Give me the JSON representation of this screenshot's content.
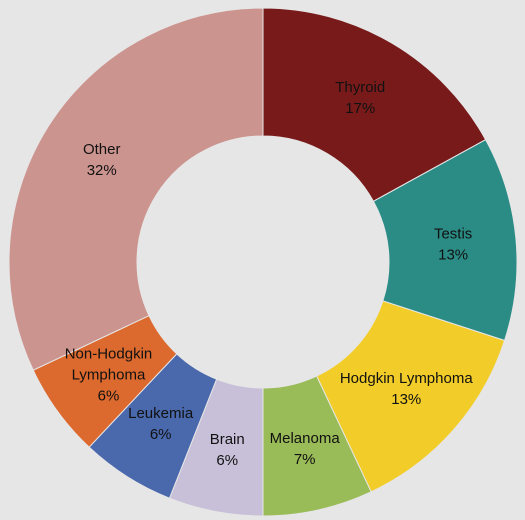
{
  "chart_data": {
    "type": "pie",
    "categories": [
      "Thyroid",
      "Testis",
      "Hodgkin Lymphoma",
      "Melanoma",
      "Brain",
      "Leukemia",
      "Non-Hodgkin Lymphoma",
      "Other"
    ],
    "labels": [
      [
        "Thyroid",
        "17%"
      ],
      [
        "Testis",
        "13%"
      ],
      [
        "Hodgkin Lymphoma",
        "13%"
      ],
      [
        "Melanoma",
        "7%"
      ],
      [
        "Brain",
        "6%"
      ],
      [
        "Leukemia",
        "6%"
      ],
      [
        "Non-Hodgkin",
        "Lymphoma",
        "6%"
      ],
      [
        "Other",
        "32%"
      ]
    ],
    "values": [
      17,
      13,
      13,
      7,
      6,
      6,
      6,
      32
    ],
    "colors": [
      "#781a1a",
      "#2b8c86",
      "#f2cd2a",
      "#99bb58",
      "#c8c0d8",
      "#4a68ac",
      "#dc692e",
      "#cc948f"
    ],
    "style": "donut"
  }
}
